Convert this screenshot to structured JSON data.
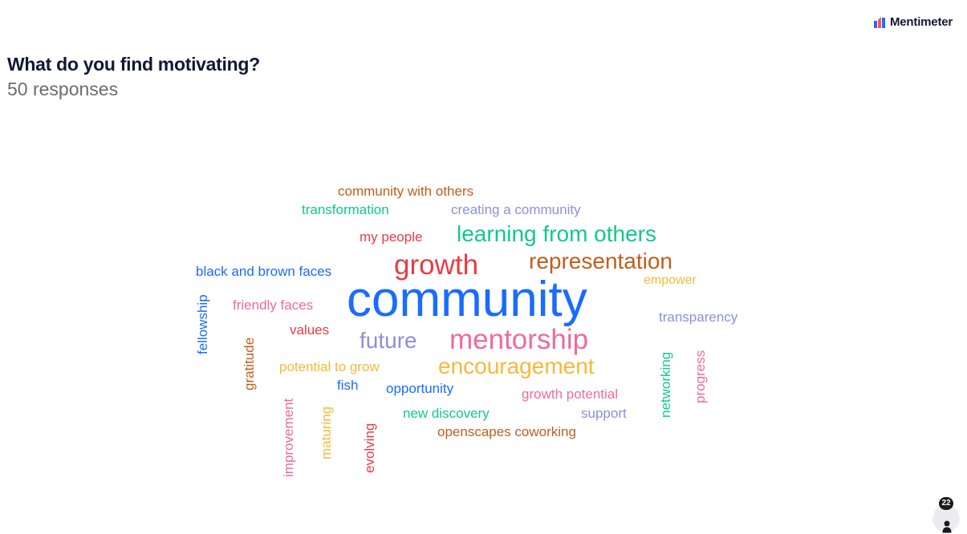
{
  "brand": {
    "name": "Mentimeter",
    "logo_icon": "mentimeter-logo-icon",
    "logo_colors": [
      "#3a5cf5",
      "#f25858",
      "#196cff"
    ]
  },
  "question": {
    "title": "What do you find motivating?",
    "responses_label": "50 responses"
  },
  "word_cloud": {
    "words": [
      {
        "text": "community with others",
        "color": "#c05e1e"
      },
      {
        "text": "transformation",
        "color": "#10c98a"
      },
      {
        "text": "creating a community",
        "color": "#8c8fe0"
      },
      {
        "text": "my people",
        "color": "#ea3a43"
      },
      {
        "text": "learning from others",
        "color": "#10c98a"
      },
      {
        "text": "black and brown faces",
        "color": "#196cff"
      },
      {
        "text": "growth",
        "color": "#ea3a43"
      },
      {
        "text": "representation",
        "color": "#c05e1e"
      },
      {
        "text": "empower",
        "color": "#f5b93a"
      },
      {
        "text": "community",
        "color": "#196cff"
      },
      {
        "text": "fellowship",
        "color": "#196cff"
      },
      {
        "text": "friendly faces",
        "color": "#ef6b9b"
      },
      {
        "text": "transparency",
        "color": "#8c8fe0"
      },
      {
        "text": "values",
        "color": "#ea3a43"
      },
      {
        "text": "future",
        "color": "#8c8fe0"
      },
      {
        "text": "mentorship",
        "color": "#ef6b9b"
      },
      {
        "text": "gratitude",
        "color": "#c05e1e"
      },
      {
        "text": "potential to grow",
        "color": "#f5b93a"
      },
      {
        "text": "encouragement",
        "color": "#f5b93a"
      },
      {
        "text": "networking",
        "color": "#10c98a"
      },
      {
        "text": "progress",
        "color": "#ef6b9b"
      },
      {
        "text": "fish",
        "color": "#196cff"
      },
      {
        "text": "opportunity",
        "color": "#196cff"
      },
      {
        "text": "growth potential",
        "color": "#ef6b9b"
      },
      {
        "text": "new discovery",
        "color": "#10c98a"
      },
      {
        "text": "support",
        "color": "#8c8fe0"
      },
      {
        "text": "improvement",
        "color": "#ef6b9b"
      },
      {
        "text": "maturing",
        "color": "#f5b93a"
      },
      {
        "text": "evolving",
        "color": "#ea3a43"
      },
      {
        "text": "openscapes coworking",
        "color": "#c05e1e"
      }
    ]
  },
  "viewers": {
    "count": "22",
    "icon": "person-icon",
    "badge_color": "#1b1b1f"
  }
}
